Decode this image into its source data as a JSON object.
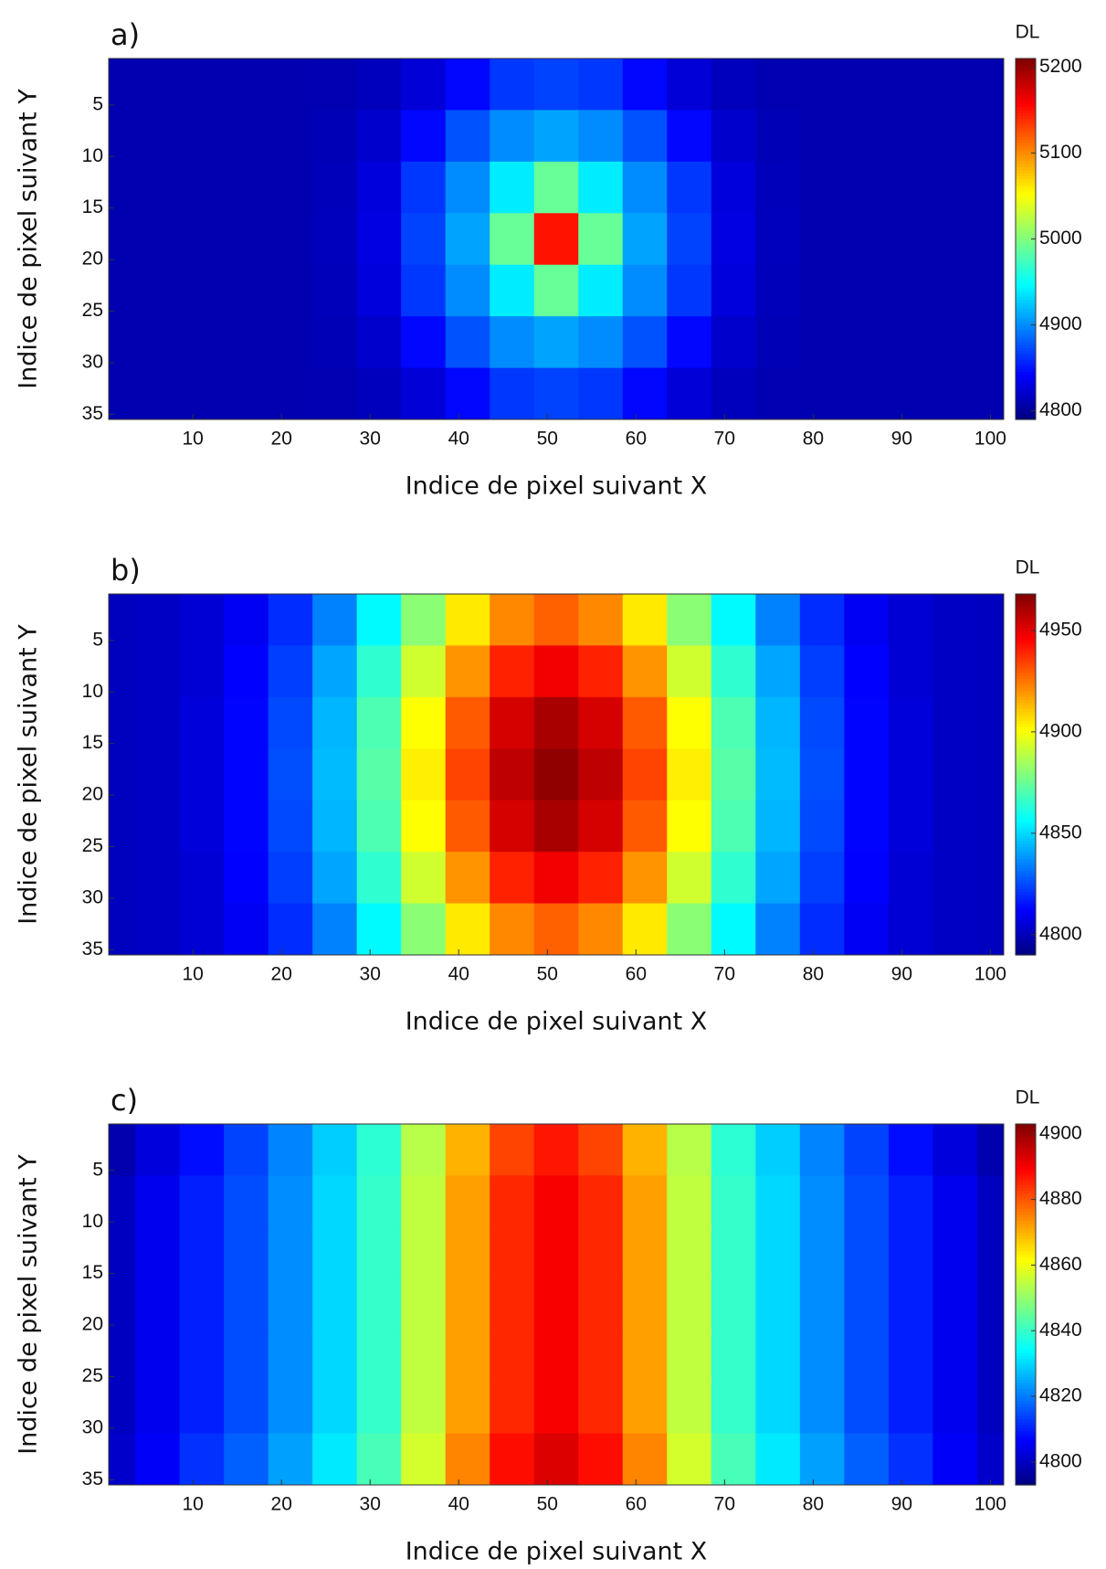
{
  "chart_data": [
    {
      "type": "heatmap",
      "title": "a)",
      "x_label": "Indice de pixel suivant X",
      "y_label": "Indice de pixel suivant Y",
      "colorbar_label": "DL",
      "colormap": "jet",
      "y_reversed": true,
      "x": [
        1,
        6,
        11,
        16,
        21,
        26,
        31,
        36,
        41,
        46,
        51,
        56,
        61,
        66,
        71,
        76,
        81,
        86,
        91,
        96,
        101
      ],
      "y": [
        3,
        8,
        13,
        18,
        23,
        28,
        33
      ],
      "values": [
        [
          4810,
          4810,
          4810,
          4810,
          4810,
          4811,
          4815,
          4826,
          4845,
          4865,
          4870,
          4865,
          4845,
          4826,
          4815,
          4811,
          4810,
          4810,
          4810,
          4810,
          4810
        ],
        [
          4810,
          4810,
          4810,
          4810,
          4810,
          4813,
          4822,
          4845,
          4876,
          4900,
          4910,
          4900,
          4876,
          4845,
          4822,
          4813,
          4810,
          4810,
          4810,
          4810,
          4810
        ],
        [
          4810,
          4810,
          4810,
          4810,
          4810,
          4814,
          4828,
          4865,
          4900,
          4940,
          4990,
          4940,
          4900,
          4865,
          4828,
          4814,
          4810,
          4810,
          4810,
          4810,
          4810
        ],
        [
          4810,
          4810,
          4810,
          4810,
          4810,
          4815,
          4830,
          4870,
          4910,
          4990,
          5150,
          4990,
          4910,
          4870,
          4830,
          4815,
          4810,
          4810,
          4810,
          4810,
          4810
        ],
        [
          4810,
          4810,
          4810,
          4810,
          4810,
          4814,
          4828,
          4865,
          4900,
          4940,
          4990,
          4940,
          4900,
          4865,
          4828,
          4814,
          4810,
          4810,
          4810,
          4810,
          4810
        ],
        [
          4810,
          4810,
          4810,
          4810,
          4810,
          4813,
          4822,
          4845,
          4876,
          4900,
          4910,
          4900,
          4876,
          4845,
          4822,
          4813,
          4810,
          4810,
          4810,
          4810,
          4810
        ],
        [
          4810,
          4810,
          4810,
          4810,
          4810,
          4811,
          4815,
          4826,
          4845,
          4865,
          4870,
          4865,
          4845,
          4826,
          4815,
          4811,
          4810,
          4810,
          4810,
          4810,
          4810
        ]
      ],
      "xlim": [
        0.5,
        101.5
      ],
      "ylim": [
        0.5,
        35.5
      ],
      "xticks": [
        10,
        20,
        30,
        40,
        50,
        60,
        70,
        80,
        90,
        100
      ],
      "yticks": [
        5,
        10,
        15,
        20,
        25,
        30,
        35
      ],
      "clim": [
        4790,
        5210
      ],
      "cticks": [
        4800,
        4900,
        5000,
        5100,
        5200
      ]
    },
    {
      "type": "heatmap",
      "title": "b)",
      "x_label": "Indice de pixel suivant X",
      "y_label": "Indice de pixel suivant Y",
      "colorbar_label": "DL",
      "colormap": "jet",
      "y_reversed": true,
      "x": [
        1,
        6,
        11,
        16,
        21,
        26,
        31,
        36,
        41,
        46,
        51,
        56,
        61,
        66,
        71,
        76,
        81,
        86,
        91,
        96,
        101
      ],
      "y": [
        3,
        8,
        13,
        18,
        23,
        28,
        33
      ],
      "values": [
        [
          4801,
          4802,
          4805,
          4810,
          4820,
          4835,
          4856,
          4881,
          4905,
          4922,
          4929,
          4922,
          4905,
          4881,
          4856,
          4835,
          4820,
          4810,
          4805,
          4802,
          4801
        ],
        [
          4801,
          4802,
          4805,
          4812,
          4823,
          4841,
          4865,
          4893,
          4920,
          4940,
          4948,
          4940,
          4920,
          4893,
          4865,
          4841,
          4823,
          4812,
          4805,
          4802,
          4801
        ],
        [
          4801,
          4802,
          4806,
          4813,
          4825,
          4844,
          4870,
          4901,
          4930,
          4953,
          4961,
          4953,
          4930,
          4901,
          4870,
          4844,
          4825,
          4813,
          4806,
          4802,
          4801
        ],
        [
          4801,
          4802,
          4806,
          4813,
          4826,
          4845,
          4872,
          4904,
          4934,
          4957,
          4965,
          4957,
          4934,
          4904,
          4872,
          4845,
          4826,
          4813,
          4806,
          4802,
          4801
        ],
        [
          4801,
          4802,
          4806,
          4813,
          4825,
          4844,
          4870,
          4901,
          4930,
          4953,
          4961,
          4953,
          4930,
          4901,
          4870,
          4844,
          4825,
          4813,
          4806,
          4802,
          4801
        ],
        [
          4801,
          4802,
          4805,
          4812,
          4823,
          4841,
          4865,
          4893,
          4920,
          4940,
          4948,
          4940,
          4920,
          4893,
          4865,
          4841,
          4823,
          4812,
          4805,
          4802,
          4801
        ],
        [
          4801,
          4802,
          4805,
          4810,
          4820,
          4835,
          4856,
          4881,
          4905,
          4922,
          4929,
          4922,
          4905,
          4881,
          4856,
          4835,
          4820,
          4810,
          4805,
          4802,
          4801
        ]
      ],
      "xlim": [
        0.5,
        101.5
      ],
      "ylim": [
        0.5,
        35.5
      ],
      "xticks": [
        10,
        20,
        30,
        40,
        50,
        60,
        70,
        80,
        90,
        100
      ],
      "yticks": [
        5,
        10,
        15,
        20,
        25,
        30,
        35
      ],
      "clim": [
        4790,
        4968
      ],
      "cticks": [
        4800,
        4850,
        4900,
        4950
      ]
    },
    {
      "type": "heatmap",
      "title": "c)",
      "x_label": "Indice de pixel suivant X",
      "y_label": "Indice de pixel suivant Y",
      "colorbar_label": "DL",
      "colormap": "jet",
      "y_reversed": true,
      "x": [
        1,
        6,
        11,
        16,
        21,
        26,
        31,
        36,
        41,
        46,
        51,
        56,
        61,
        66,
        71,
        76,
        81,
        86,
        91,
        96,
        101
      ],
      "y": [
        3,
        8,
        13,
        18,
        23,
        28,
        33
      ],
      "values": [
        [
          4798,
          4803,
          4808,
          4814,
          4821,
          4829,
          4839,
          4854,
          4870,
          4882,
          4887,
          4882,
          4870,
          4854,
          4839,
          4829,
          4821,
          4814,
          4808,
          4803,
          4798
        ],
        [
          4800,
          4805,
          4810,
          4815,
          4822,
          4830,
          4840,
          4855,
          4872,
          4885,
          4890,
          4885,
          4872,
          4855,
          4840,
          4830,
          4822,
          4815,
          4810,
          4805,
          4800
        ],
        [
          4800,
          4805,
          4810,
          4815,
          4822,
          4830,
          4840,
          4855,
          4872,
          4885,
          4890,
          4885,
          4872,
          4855,
          4840,
          4830,
          4822,
          4815,
          4810,
          4805,
          4800
        ],
        [
          4800,
          4805,
          4810,
          4815,
          4822,
          4830,
          4840,
          4855,
          4872,
          4885,
          4890,
          4885,
          4872,
          4855,
          4840,
          4830,
          4822,
          4815,
          4810,
          4805,
          4800
        ],
        [
          4800,
          4805,
          4810,
          4815,
          4822,
          4830,
          4840,
          4855,
          4872,
          4885,
          4890,
          4885,
          4872,
          4855,
          4840,
          4830,
          4822,
          4815,
          4810,
          4805,
          4800
        ],
        [
          4800,
          4805,
          4810,
          4815,
          4822,
          4830,
          4840,
          4855,
          4872,
          4885,
          4890,
          4885,
          4872,
          4855,
          4840,
          4830,
          4822,
          4815,
          4810,
          4805,
          4800
        ],
        [
          4801,
          4806,
          4812,
          4817,
          4824,
          4832,
          4842,
          4857,
          4875,
          4888,
          4893,
          4888,
          4875,
          4857,
          4842,
          4832,
          4824,
          4817,
          4812,
          4806,
          4801
        ]
      ],
      "xlim": [
        0.5,
        101.5
      ],
      "ylim": [
        0.5,
        35.5
      ],
      "xticks": [
        10,
        20,
        30,
        40,
        50,
        60,
        70,
        80,
        90,
        100
      ],
      "yticks": [
        5,
        10,
        15,
        20,
        25,
        30,
        35
      ],
      "clim": [
        4793,
        4903
      ],
      "cticks": [
        4800,
        4820,
        4840,
        4860,
        4880,
        4900
      ]
    }
  ]
}
